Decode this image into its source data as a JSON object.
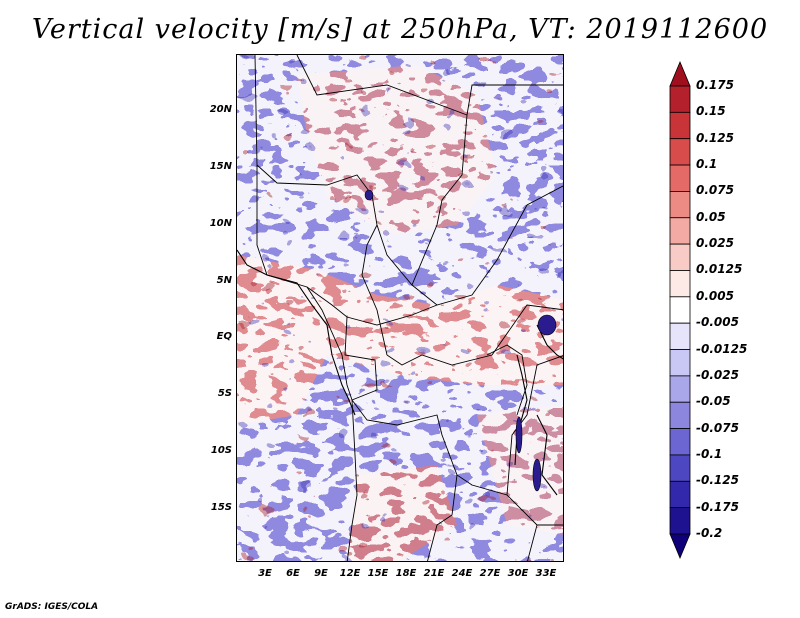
{
  "title": "Vertical velocity [m/s] at 250hPa, VT: 2019112600",
  "footer": "GrADS: IGES/COLA",
  "map": {
    "lat_labels": [
      "20N",
      "15N",
      "10N",
      "5N",
      "EQ",
      "5S",
      "10S",
      "15S"
    ],
    "lon_labels": [
      "3E",
      "6E",
      "9E",
      "12E",
      "15E",
      "18E",
      "21E",
      "24E",
      "27E",
      "30E",
      "33E"
    ]
  },
  "colorbar": {
    "labels": [
      "0.175",
      "0.15",
      "0.125",
      "0.1",
      "0.075",
      "0.05",
      "0.025",
      "0.0125",
      "0.005",
      "-0.005",
      "-0.0125",
      "-0.025",
      "-0.05",
      "-0.075",
      "-0.1",
      "-0.125",
      "-0.175",
      "-0.2"
    ],
    "colors": [
      "#a00f1e",
      "#b4202b",
      "#c83438",
      "#d84c4c",
      "#e36a66",
      "#ec8a84",
      "#f3aaa4",
      "#f8cbc6",
      "#fde9e6",
      "#ffffff",
      "#e6e4fa",
      "#c9c7f3",
      "#aaa6ea",
      "#8c86df",
      "#6c66d2",
      "#4e47c2",
      "#3228ac",
      "#1f1290",
      "#0f007a"
    ]
  }
}
